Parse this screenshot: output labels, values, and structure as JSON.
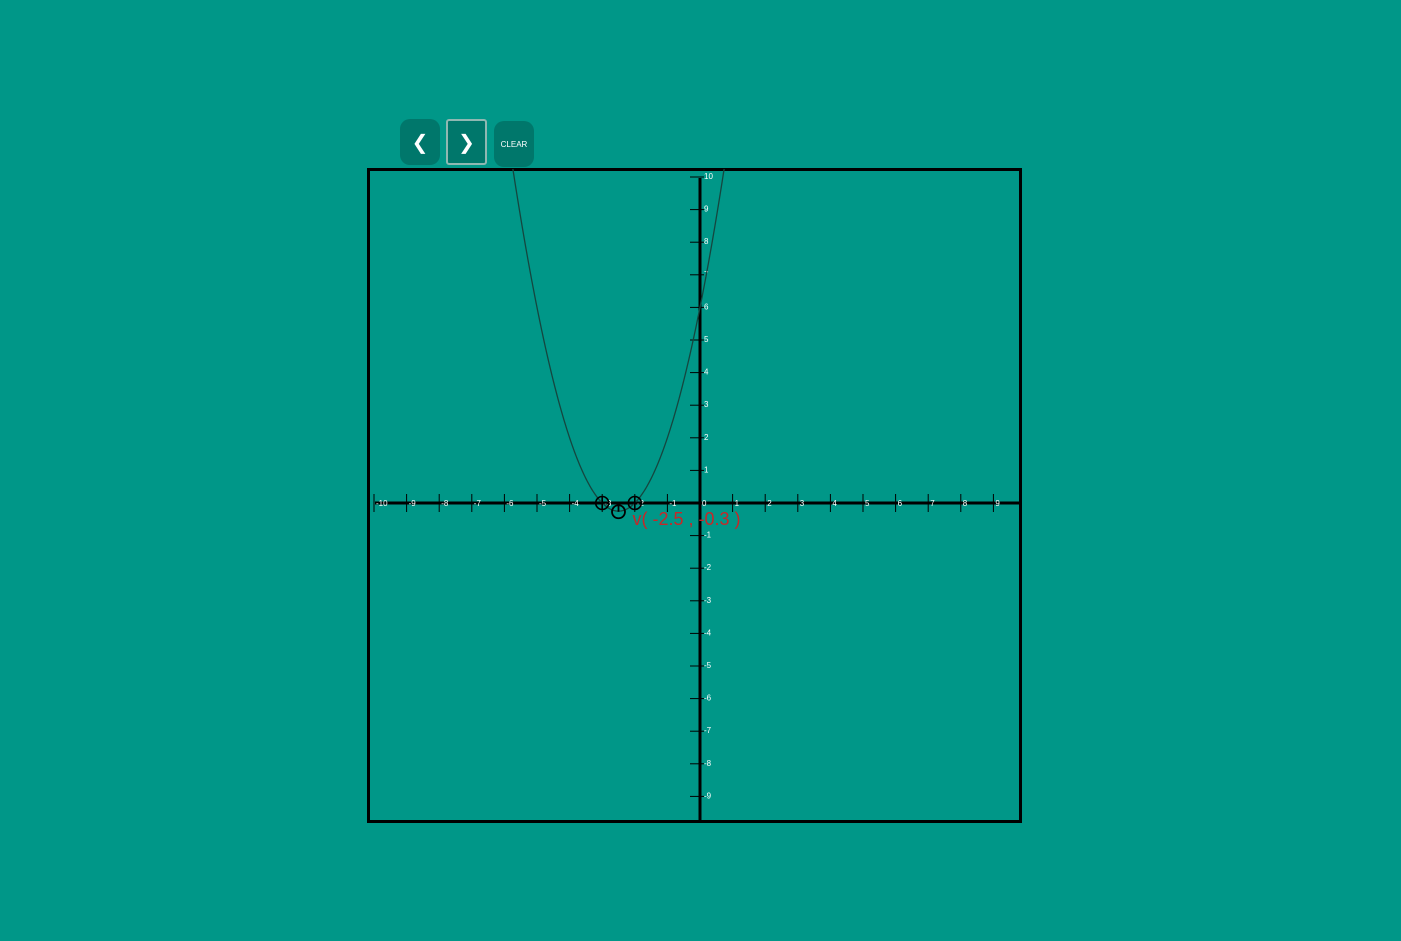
{
  "toolbar": {
    "prev_label": "❮",
    "next_label": "❯",
    "clear_label": "CLEAR"
  },
  "colors": {
    "background": "#009788",
    "axis": "#000000",
    "curve": "#15463f",
    "vertex_label": "#c62828",
    "tick_label": "#ffffff"
  },
  "graph": {
    "x_range": [
      -10,
      10
    ],
    "y_range": [
      -10,
      10
    ],
    "x_tick_labels": [
      "-10",
      "-9",
      "-8",
      "-7",
      "-6",
      "-5",
      "-4",
      "-3",
      "-2",
      "-1",
      "0",
      "1",
      "2",
      "3",
      "4",
      "5",
      "6",
      "7",
      "8",
      "9"
    ],
    "y_tick_labels_positive": [
      "1",
      "2",
      "3",
      "4",
      "5",
      "6",
      "7",
      "8",
      "9",
      "10"
    ],
    "y_tick_labels_negative": [
      "-1",
      "-2",
      "-3",
      "-4",
      "-5",
      "-6",
      "-7",
      "-8",
      "-9"
    ],
    "vertex_label": "v( -2.5 , -0.3 )",
    "vertex": {
      "x": -2.5,
      "y": -0.3
    },
    "roots": [
      -3,
      -2
    ],
    "parabola": {
      "a": 1,
      "b": 5,
      "c": 6
    },
    "marker_icons": [
      "crosshair-icon",
      "crosshair-icon",
      "vertex-icon"
    ]
  }
}
